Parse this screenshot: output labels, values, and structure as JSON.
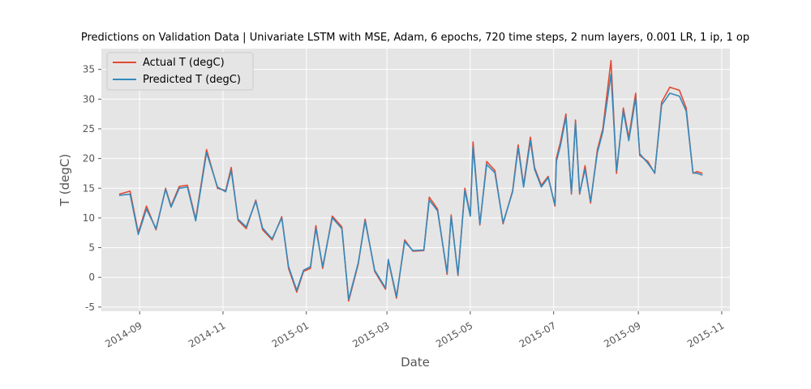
{
  "chart_data": {
    "type": "line",
    "title": "Predictions on Validation Data  | Univariate LSTM with MSE, Adam, 6 epochs, 720 time steps, 2 num layers, 0.001 LR, 1 ip, 1 op",
    "xlabel": "Date",
    "ylabel": "T (degC)",
    "xlim": [
      "2014-08-04",
      "2015-11-07"
    ],
    "ylim": [
      -5.7,
      38.5
    ],
    "x_ticks": [
      "2014-09",
      "2014-11",
      "2015-01",
      "2015-03",
      "2015-05",
      "2015-07",
      "2015-09",
      "2015-11"
    ],
    "y_ticks": [
      -5,
      0,
      5,
      10,
      15,
      20,
      25,
      30,
      35
    ],
    "grid": true,
    "legend_position": "top-left",
    "series": [
      {
        "name": "Actual T (degC)",
        "color": "#e24a33",
        "x": [
          "2014-08-17",
          "2014-08-25",
          "2014-08-31",
          "2014-09-06",
          "2014-09-13",
          "2014-09-20",
          "2014-09-24",
          "2014-09-30",
          "2014-10-06",
          "2014-10-12",
          "2014-10-20",
          "2014-10-28",
          "2014-11-03",
          "2014-11-07",
          "2014-11-12",
          "2014-11-18",
          "2014-11-25",
          "2014-11-30",
          "2014-12-07",
          "2014-12-14",
          "2014-12-19",
          "2014-12-25",
          "2014-12-30",
          "2015-01-04",
          "2015-01-08",
          "2015-01-13",
          "2015-01-20",
          "2015-01-27",
          "2015-02-01",
          "2015-02-08",
          "2015-02-13",
          "2015-02-20",
          "2015-02-28",
          "2015-03-02",
          "2015-03-08",
          "2015-03-14",
          "2015-03-20",
          "2015-03-28",
          "2015-04-01",
          "2015-04-07",
          "2015-04-14",
          "2015-04-17",
          "2015-04-22",
          "2015-04-27",
          "2015-05-01",
          "2015-05-03",
          "2015-05-08",
          "2015-05-13",
          "2015-05-19",
          "2015-05-25",
          "2015-06-01",
          "2015-06-05",
          "2015-06-09",
          "2015-06-14",
          "2015-06-17",
          "2015-06-22",
          "2015-06-27",
          "2015-07-02",
          "2015-07-03",
          "2015-07-06",
          "2015-07-10",
          "2015-07-14",
          "2015-07-17",
          "2015-07-20",
          "2015-07-24",
          "2015-07-28",
          "2015-08-02",
          "2015-08-06",
          "2015-08-12",
          "2015-08-16",
          "2015-08-21",
          "2015-08-25",
          "2015-08-30",
          "2015-09-02",
          "2015-09-08",
          "2015-09-13",
          "2015-09-18",
          "2015-09-24",
          "2015-10-01",
          "2015-10-06",
          "2015-10-11",
          "2015-10-14",
          "2015-10-18"
        ],
        "values": [
          14,
          14.5,
          7.5,
          12,
          8,
          15,
          12,
          15.3,
          15.5,
          9.8,
          21.5,
          15,
          14.6,
          18.5,
          9.6,
          8.2,
          13,
          8,
          6.3,
          10.2,
          1.5,
          -2.5,
          1,
          1.5,
          8.7,
          1.5,
          10.3,
          8.5,
          -4,
          2.2,
          9.8,
          1,
          -2,
          2.9,
          -3.5,
          6.3,
          4.4,
          4.5,
          13.5,
          11.5,
          0.5,
          10.5,
          0.3,
          15,
          10.5,
          22.8,
          8.8,
          19.5,
          18,
          9,
          14.6,
          22.3,
          15.5,
          23.6,
          18.5,
          15.5,
          17,
          12,
          20,
          22.8,
          27.5,
          14,
          26.5,
          14,
          18.8,
          12.5,
          21.5,
          25,
          36.5,
          17.5,
          28.5,
          23.5,
          31,
          20.5,
          19.5,
          17.5,
          29.5,
          32,
          31.5,
          28.5,
          17.5,
          17.8,
          17.5
        ]
      },
      {
        "name": "Predicted T (degC)",
        "color": "#348abd",
        "x": [
          "2014-08-17",
          "2014-08-25",
          "2014-08-31",
          "2014-09-06",
          "2014-09-13",
          "2014-09-20",
          "2014-09-24",
          "2014-09-30",
          "2014-10-06",
          "2014-10-12",
          "2014-10-20",
          "2014-10-28",
          "2014-11-03",
          "2014-11-07",
          "2014-11-12",
          "2014-11-18",
          "2014-11-25",
          "2014-11-30",
          "2014-12-07",
          "2014-12-14",
          "2014-12-19",
          "2014-12-25",
          "2014-12-30",
          "2015-01-04",
          "2015-01-08",
          "2015-01-13",
          "2015-01-20",
          "2015-01-27",
          "2015-02-01",
          "2015-02-08",
          "2015-02-13",
          "2015-02-20",
          "2015-02-28",
          "2015-03-02",
          "2015-03-08",
          "2015-03-14",
          "2015-03-20",
          "2015-03-28",
          "2015-04-01",
          "2015-04-07",
          "2015-04-14",
          "2015-04-17",
          "2015-04-22",
          "2015-04-27",
          "2015-05-01",
          "2015-05-03",
          "2015-05-08",
          "2015-05-13",
          "2015-05-19",
          "2015-05-25",
          "2015-06-01",
          "2015-06-05",
          "2015-06-09",
          "2015-06-14",
          "2015-06-17",
          "2015-06-22",
          "2015-06-27",
          "2015-07-02",
          "2015-07-03",
          "2015-07-06",
          "2015-07-10",
          "2015-07-14",
          "2015-07-17",
          "2015-07-20",
          "2015-07-24",
          "2015-07-28",
          "2015-08-02",
          "2015-08-06",
          "2015-08-12",
          "2015-08-16",
          "2015-08-21",
          "2015-08-25",
          "2015-08-30",
          "2015-09-02",
          "2015-09-08",
          "2015-09-13",
          "2015-09-18",
          "2015-09-24",
          "2015-10-01",
          "2015-10-06",
          "2015-10-11",
          "2015-10-14",
          "2015-10-18"
        ],
        "values": [
          13.8,
          14,
          7.2,
          11.5,
          8.2,
          14.8,
          11.8,
          15,
          15.2,
          9.5,
          21,
          15.2,
          14.4,
          18,
          9.8,
          8.5,
          12.8,
          8.3,
          6.5,
          10,
          1.8,
          -2.2,
          1.2,
          1.8,
          8.2,
          1.8,
          10,
          8.2,
          -3.7,
          2.4,
          9.5,
          1.2,
          -1.8,
          3,
          -3.2,
          6,
          4.5,
          4.6,
          13,
          11.2,
          0.8,
          10.2,
          0.5,
          14.6,
          10.3,
          22,
          9,
          19,
          17.6,
          9.2,
          14.4,
          21.8,
          15.2,
          23,
          18.2,
          15.2,
          16.8,
          12.2,
          19.5,
          22.2,
          27,
          14.3,
          26,
          14.2,
          18.2,
          12.8,
          21,
          24.5,
          34.2,
          18,
          28,
          23,
          30.2,
          20.8,
          19.2,
          17.6,
          29,
          31,
          30.5,
          28,
          17.6,
          17.5,
          17.2
        ]
      }
    ]
  }
}
